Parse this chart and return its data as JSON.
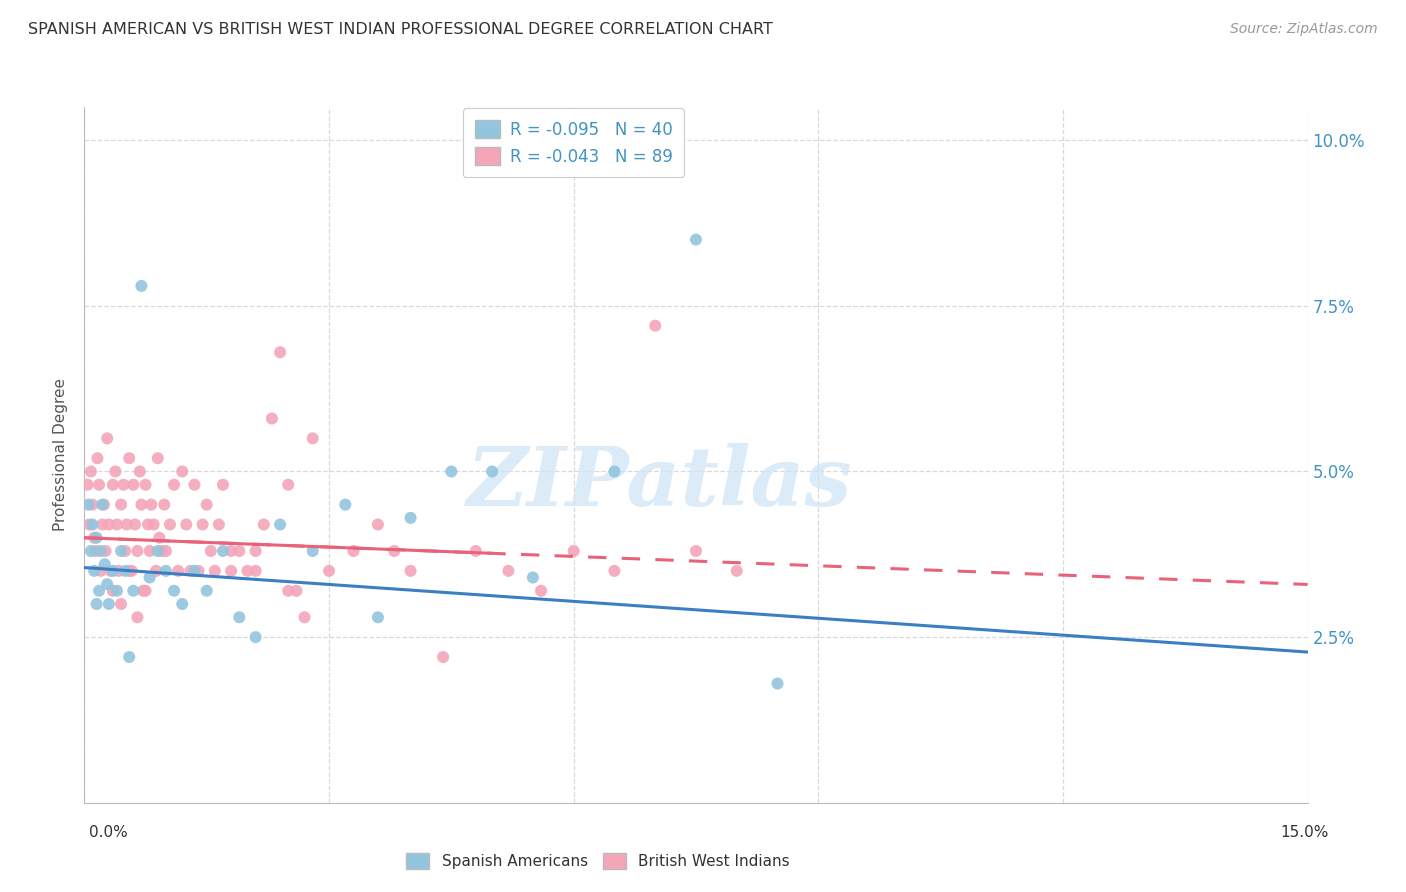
{
  "title": "SPANISH AMERICAN VS BRITISH WEST INDIAN PROFESSIONAL DEGREE CORRELATION CHART",
  "source": "Source: ZipAtlas.com",
  "ylabel": "Professional Degree",
  "xlim": [
    0.0,
    15.0
  ],
  "ylim": [
    0.0,
    10.5
  ],
  "yticks": [
    2.5,
    5.0,
    7.5,
    10.0
  ],
  "ytick_labels": [
    "2.5%",
    "5.0%",
    "7.5%",
    "10.0%"
  ],
  "xticks": [
    0,
    3,
    6,
    9,
    12,
    15
  ],
  "watermark_text": "ZIPatlas",
  "legend1_label": "R = -0.095   N = 40",
  "legend2_label": "R = -0.043   N = 89",
  "blue_scatter_color": "#92c5de",
  "pink_scatter_color": "#f4a5b8",
  "blue_line_color": "#3a7fc1",
  "pink_line_color": "#e8637a",
  "title_color": "#333333",
  "source_color": "#999999",
  "grid_color": "#d9d9d9",
  "tick_color": "#4393c3",
  "blue_line_intercept": 3.55,
  "blue_line_slope": -0.085,
  "pink_line_intercept": 4.0,
  "pink_line_slope": -0.047,
  "spanish_x": [
    0.05,
    0.08,
    0.1,
    0.12,
    0.15,
    0.18,
    0.2,
    0.22,
    0.25,
    0.28,
    0.3,
    0.35,
    0.4,
    0.45,
    0.5,
    0.6,
    0.7,
    0.8,
    0.9,
    1.0,
    1.1,
    1.2,
    1.35,
    1.5,
    1.7,
    1.9,
    2.1,
    2.4,
    2.8,
    3.2,
    3.6,
    4.0,
    4.5,
    5.0,
    5.5,
    6.5,
    7.5,
    8.5,
    0.15,
    0.55
  ],
  "spanish_y": [
    4.5,
    3.8,
    4.2,
    3.5,
    4.0,
    3.2,
    3.8,
    4.5,
    3.6,
    3.3,
    3.0,
    3.5,
    3.2,
    3.8,
    3.5,
    3.2,
    7.8,
    3.4,
    3.8,
    3.5,
    3.2,
    3.0,
    3.5,
    3.2,
    3.8,
    2.8,
    2.5,
    4.2,
    3.8,
    4.5,
    2.8,
    4.3,
    5.0,
    5.0,
    3.4,
    5.0,
    8.5,
    1.8,
    3.0,
    2.2
  ],
  "bwi_x": [
    0.04,
    0.06,
    0.08,
    0.1,
    0.12,
    0.14,
    0.16,
    0.18,
    0.2,
    0.22,
    0.24,
    0.26,
    0.28,
    0.3,
    0.32,
    0.35,
    0.38,
    0.4,
    0.42,
    0.45,
    0.48,
    0.5,
    0.52,
    0.55,
    0.58,
    0.6,
    0.62,
    0.65,
    0.68,
    0.7,
    0.72,
    0.75,
    0.78,
    0.8,
    0.82,
    0.85,
    0.88,
    0.9,
    0.92,
    0.95,
    0.98,
    1.0,
    1.05,
    1.1,
    1.15,
    1.2,
    1.25,
    1.3,
    1.35,
    1.4,
    1.45,
    1.5,
    1.55,
    1.6,
    1.65,
    1.7,
    1.8,
    1.9,
    2.0,
    2.1,
    2.2,
    2.3,
    2.4,
    2.5,
    2.6,
    2.8,
    3.0,
    3.3,
    3.6,
    3.8,
    4.0,
    4.4,
    4.8,
    5.2,
    5.6,
    6.0,
    6.5,
    7.0,
    7.5,
    8.0,
    0.35,
    0.45,
    0.55,
    0.65,
    0.75,
    1.8,
    2.1,
    2.5,
    2.7
  ],
  "bwi_y": [
    4.8,
    4.2,
    5.0,
    4.5,
    4.0,
    3.8,
    5.2,
    4.8,
    3.5,
    4.2,
    4.5,
    3.8,
    5.5,
    4.2,
    3.5,
    4.8,
    5.0,
    4.2,
    3.5,
    4.5,
    4.8,
    3.8,
    4.2,
    5.2,
    3.5,
    4.8,
    4.2,
    3.8,
    5.0,
    4.5,
    3.2,
    4.8,
    4.2,
    3.8,
    4.5,
    4.2,
    3.5,
    5.2,
    4.0,
    3.8,
    4.5,
    3.8,
    4.2,
    4.8,
    3.5,
    5.0,
    4.2,
    3.5,
    4.8,
    3.5,
    4.2,
    4.5,
    3.8,
    3.5,
    4.2,
    4.8,
    3.5,
    3.8,
    3.5,
    3.8,
    4.2,
    5.8,
    6.8,
    4.8,
    3.2,
    5.5,
    3.5,
    3.8,
    4.2,
    3.8,
    3.5,
    2.2,
    3.8,
    3.5,
    3.2,
    3.8,
    3.5,
    7.2,
    3.8,
    3.5,
    3.2,
    3.0,
    3.5,
    2.8,
    3.2,
    3.8,
    3.5,
    3.2,
    2.8
  ]
}
